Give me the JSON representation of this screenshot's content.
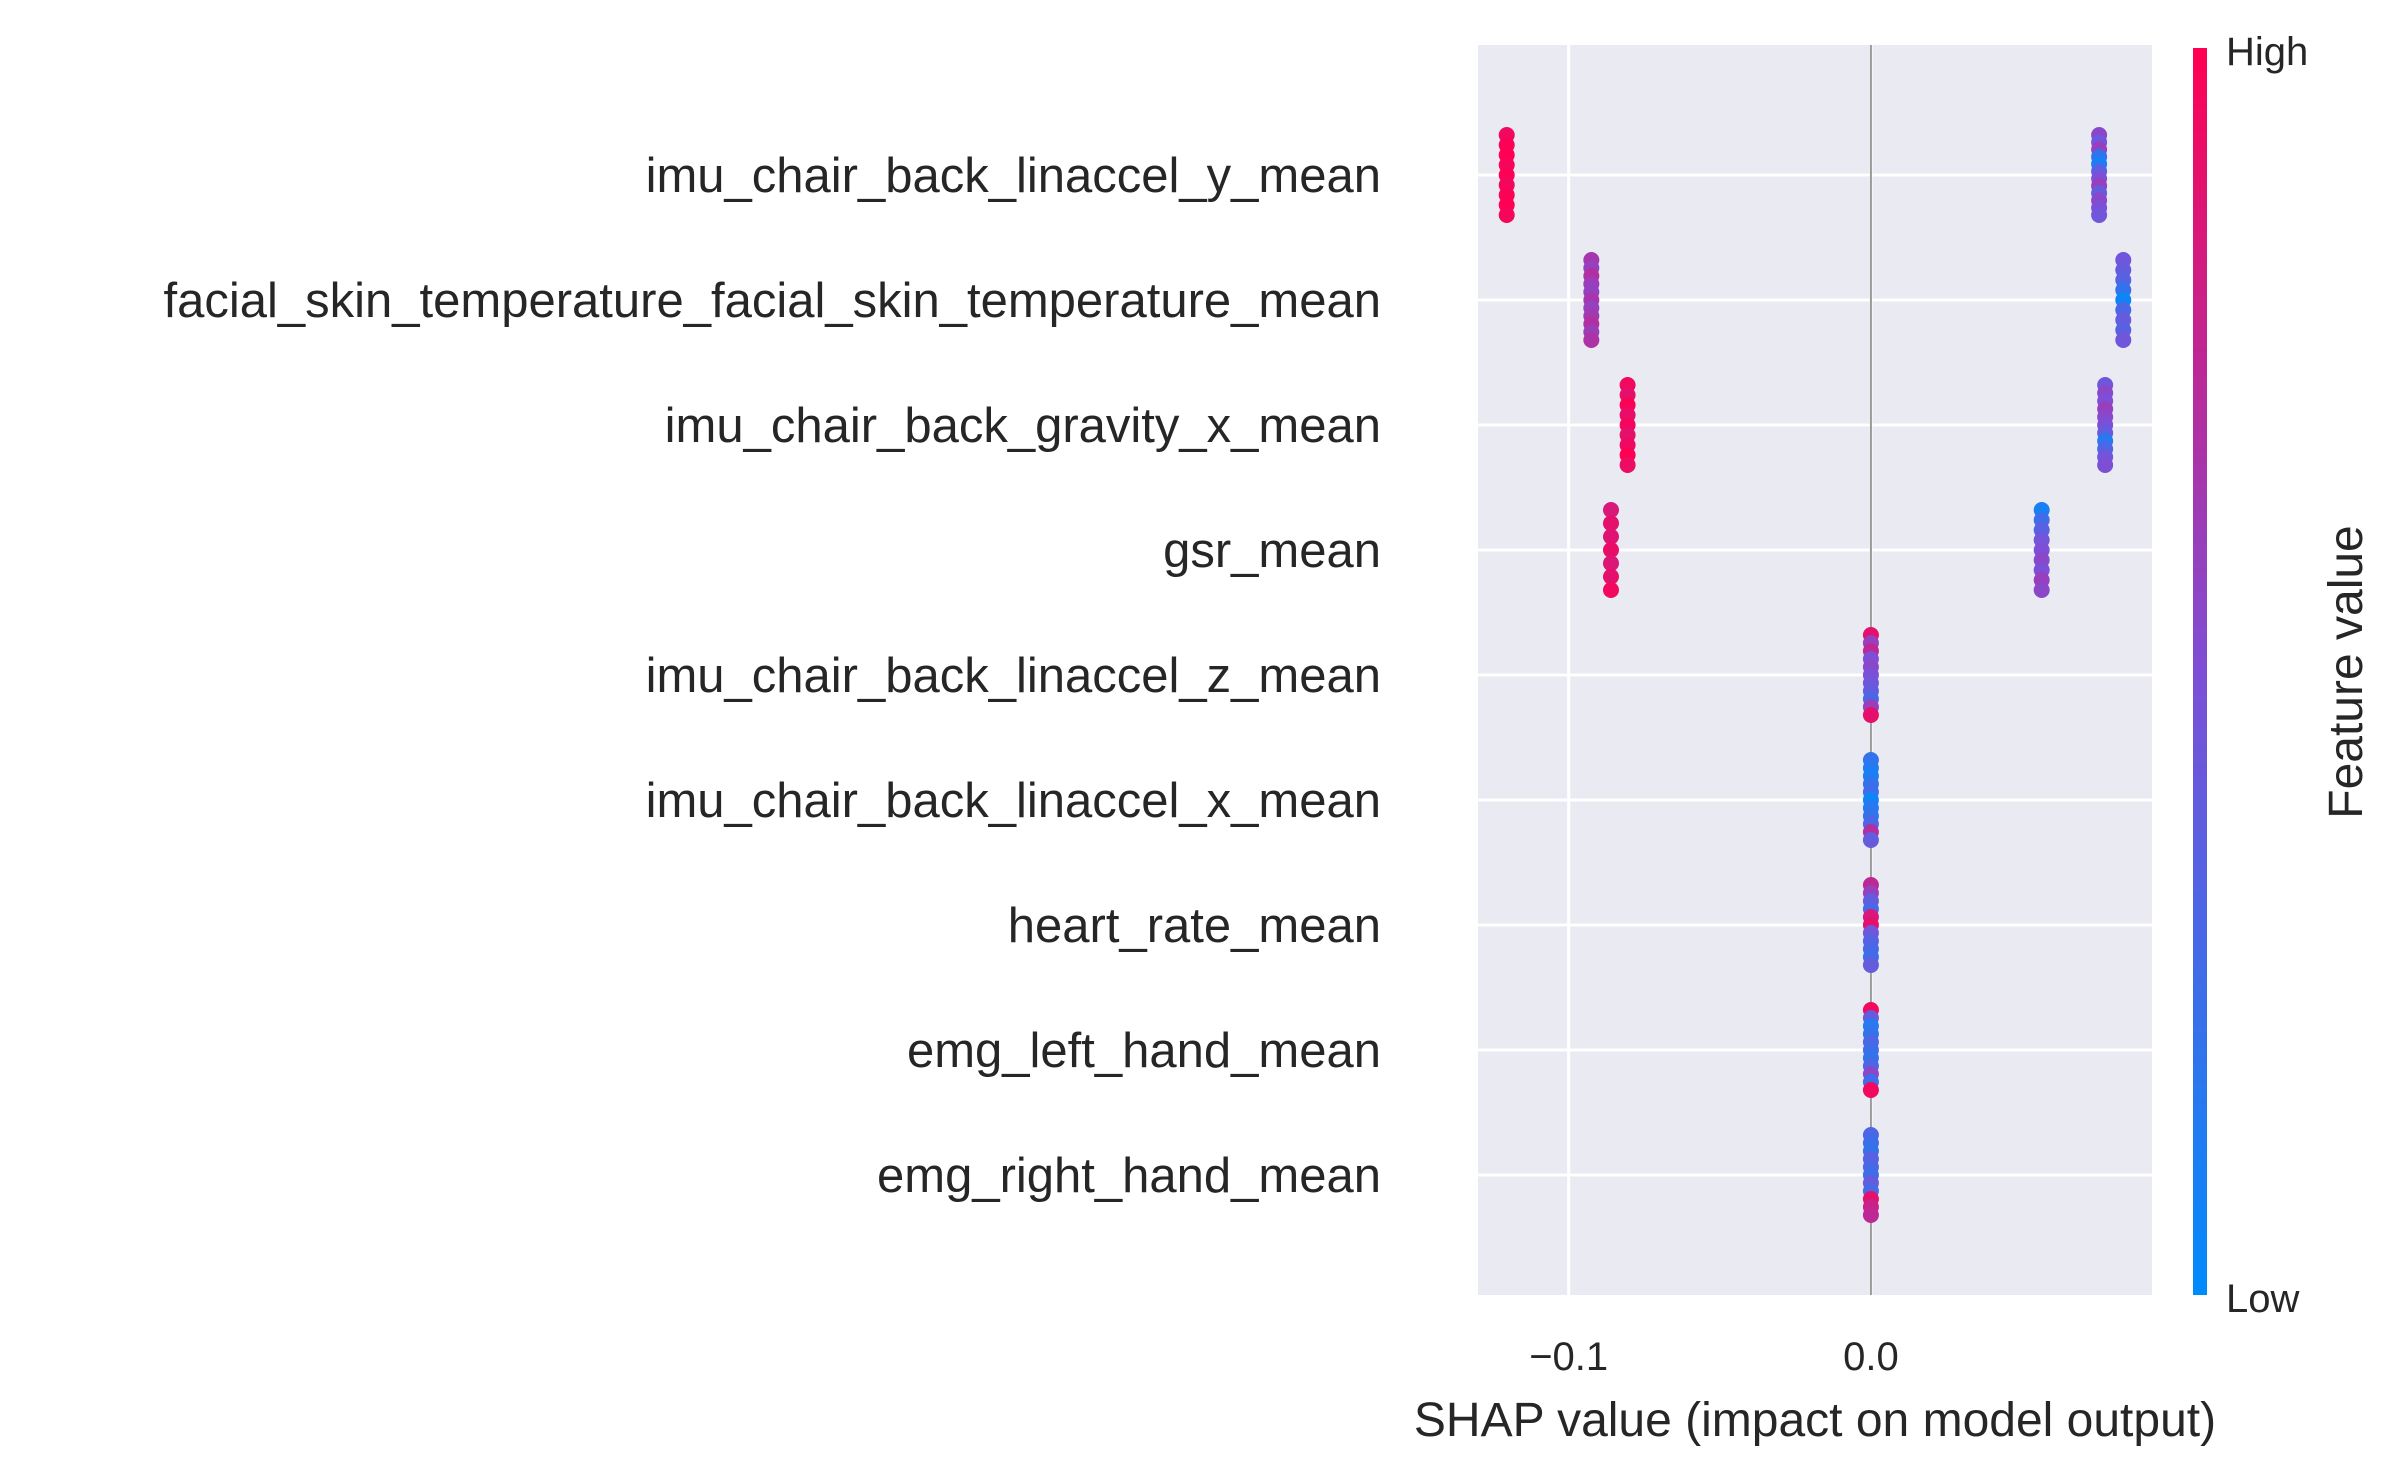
{
  "chart_data": {
    "type": "scatter",
    "subtype": "shap-beeswarm",
    "title": "",
    "xlabel": "SHAP value (impact on model output)",
    "ylabel": "",
    "xlim": [
      -0.13,
      0.093
    ],
    "xticks": [
      {
        "value": -0.1,
        "label": "−0.1"
      },
      {
        "value": 0.0,
        "label": "0.0"
      }
    ],
    "grid": true,
    "background": "#eaeaf2",
    "features": [
      "imu_chair_back_linaccel_y_mean",
      "facial_skin_temperature_facial_skin_temperature_mean",
      "imu_chair_back_gravity_x_mean",
      "gsr_mean",
      "imu_chair_back_linaccel_z_mean",
      "imu_chair_back_linaccel_x_mean",
      "heart_rate_mean",
      "emg_left_hand_mean",
      "emg_right_hand_mean"
    ],
    "points": [
      {
        "feature": "imu_chair_back_linaccel_y_mean",
        "clusters": [
          {
            "x": -0.1205,
            "color_values": [
              0.95,
              0.98,
              1.0,
              0.97,
              0.99,
              0.96,
              0.98,
              1.0,
              0.97
            ]
          },
          {
            "x": 0.0755,
            "color_values": [
              0.55,
              0.45,
              0.6,
              0.2,
              0.1,
              0.35,
              0.5,
              0.6,
              0.4,
              0.55,
              0.5,
              0.45
            ]
          }
        ]
      },
      {
        "feature": "facial_skin_temperature_facial_skin_temperature_mean",
        "clusters": [
          {
            "x": -0.0925,
            "color_values": [
              0.65,
              0.6,
              0.7,
              0.62,
              0.58,
              0.66,
              0.6,
              0.64,
              0.7,
              0.62,
              0.68
            ]
          },
          {
            "x": 0.0835,
            "color_values": [
              0.45,
              0.4,
              0.35,
              0.2,
              0.05,
              0.3,
              0.4,
              0.35,
              0.45
            ]
          }
        ]
      },
      {
        "feature": "imu_chair_back_gravity_x_mean",
        "clusters": [
          {
            "x": -0.0805,
            "color_values": [
              0.95,
              0.9,
              0.98,
              0.92,
              0.96,
              0.9,
              0.94,
              1.0,
              0.93
            ]
          },
          {
            "x": 0.0775,
            "color_values": [
              0.45,
              0.55,
              0.5,
              0.6,
              0.55,
              0.5,
              0.4,
              0.15,
              0.3,
              0.45,
              0.5
            ]
          }
        ]
      },
      {
        "feature": "gsr_mean",
        "clusters": [
          {
            "x": -0.086,
            "color_values": [
              0.85,
              0.9,
              0.88,
              0.92,
              0.86,
              0.9,
              0.95
            ]
          },
          {
            "x": 0.0565,
            "color_values": [
              0.1,
              0.25,
              0.35,
              0.45,
              0.5,
              0.55,
              0.5,
              0.6,
              0.55
            ]
          }
        ]
      },
      {
        "feature": "imu_chair_back_linaccel_z_mean",
        "clusters": [
          {
            "x": 0.0,
            "color_values": [
              0.9,
              0.6,
              0.75,
              0.5,
              0.55,
              0.5,
              0.45,
              0.4,
              0.3,
              0.6,
              0.9
            ]
          }
        ]
      },
      {
        "feature": "imu_chair_back_linaccel_x_mean",
        "clusters": [
          {
            "x": 0.0,
            "color_values": [
              0.2,
              0.15,
              0.1,
              0.2,
              0.25,
              0.05,
              0.15,
              0.2,
              0.3,
              0.7,
              0.4
            ]
          }
        ]
      },
      {
        "feature": "heart_rate_mean",
        "clusters": [
          {
            "x": 0.0,
            "color_values": [
              0.75,
              0.6,
              0.4,
              0.3,
              0.85,
              0.9,
              0.45,
              0.35,
              0.3,
              0.25,
              0.4
            ]
          }
        ]
      },
      {
        "feature": "emg_left_hand_mean",
        "clusters": [
          {
            "x": 0.0,
            "color_values": [
              0.95,
              0.4,
              0.15,
              0.2,
              0.3,
              0.25,
              0.2,
              0.3,
              0.55,
              0.25,
              0.95
            ]
          }
        ]
      },
      {
        "feature": "emg_right_hand_mean",
        "clusters": [
          {
            "x": 0.0,
            "color_values": [
              0.3,
              0.25,
              0.2,
              0.35,
              0.3,
              0.25,
              0.4,
              0.3,
              0.9,
              0.8,
              0.75
            ]
          }
        ]
      }
    ],
    "colorbar": {
      "label": "Feature value",
      "high_label": "High",
      "low_label": "Low",
      "low_color": "#008bfb",
      "mid_color": "#7d4fd6",
      "high_color": "#ff0052"
    }
  }
}
